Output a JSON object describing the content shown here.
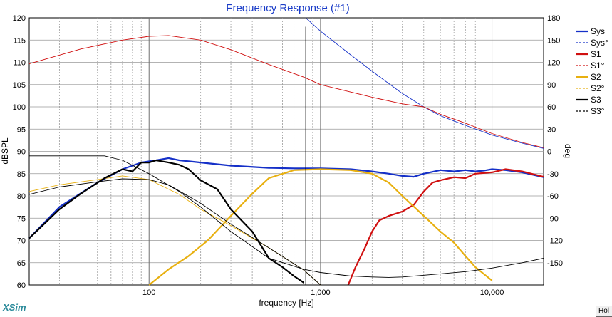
{
  "app": {
    "brand": "XSim",
    "hold_label": "Hol"
  },
  "chart_data": {
    "type": "line",
    "title": "Frequency Response (#1)",
    "xlabel": "frequency [Hz]",
    "ylabel_left": "dBSPL",
    "ylabel_right": "deg",
    "xscale": "log",
    "xlim": [
      20,
      20000
    ],
    "ylim_left": [
      60,
      120
    ],
    "ylim_right": [
      -180,
      180
    ],
    "x_tick_labels": [
      {
        "value": 100,
        "label": "100"
      },
      {
        "value": 1000,
        "label": "1,000"
      },
      {
        "value": 10000,
        "label": "10,000"
      }
    ],
    "y_left_ticks": [
      120,
      115,
      110,
      105,
      100,
      95,
      90,
      85,
      80,
      75,
      70,
      65,
      60
    ],
    "y_right_ticks": [
      180,
      150,
      120,
      90,
      60,
      30,
      0,
      -30,
      -60,
      -90,
      -120,
      -150
    ],
    "grid": true,
    "legend_position": "right",
    "colors": {
      "Sys": "#1530c8",
      "S1": "#d01010",
      "S2": "#e8b010",
      "S3": "#000000",
      "title": "#1a3cc8"
    },
    "series": [
      {
        "name": "Sys",
        "axis": "left",
        "style": "solid",
        "x": [
          20,
          30,
          50,
          70,
          90,
          110,
          130,
          150,
          200,
          300,
          500,
          700,
          1000,
          1500,
          2000,
          2500,
          3000,
          3500,
          4000,
          5000,
          6000,
          7000,
          8000,
          9000,
          10000,
          12000,
          15000,
          20000
        ],
        "y": [
          70.5,
          77.5,
          83,
          86,
          87.5,
          88,
          88.5,
          88,
          87.5,
          86.8,
          86.3,
          86.2,
          86.2,
          86,
          85.5,
          85,
          84.5,
          84.3,
          85,
          85.8,
          85.5,
          85.8,
          85.5,
          85.7,
          86,
          85.8,
          85.3,
          84.2
        ]
      },
      {
        "name": "Sys°",
        "axis": "right",
        "style": "dashed",
        "x": [
          820,
          1000,
          1500,
          2000,
          3000,
          4000,
          5000,
          7000,
          10000,
          15000,
          20000
        ],
        "y": [
          180,
          162,
          130,
          108,
          78,
          60,
          48,
          35,
          22,
          11,
          4
        ]
      },
      {
        "name": "S1",
        "axis": "left",
        "style": "solid",
        "x": [
          1450,
          1600,
          1800,
          2000,
          2200,
          2500,
          3000,
          3500,
          4000,
          4500,
          5000,
          6000,
          7000,
          8000,
          10000,
          12000,
          15000,
          20000
        ],
        "y": [
          60,
          64,
          68,
          72,
          74.5,
          75.5,
          76.5,
          78,
          81,
          83,
          83.5,
          84.2,
          84,
          85,
          85.3,
          86,
          85.5,
          84.3
        ]
      },
      {
        "name": "S1°",
        "axis": "right",
        "style": "dashed",
        "x": [
          20,
          40,
          70,
          100,
          130,
          200,
          300,
          500,
          800,
          1000,
          1500,
          2000,
          3000,
          4000,
          5000,
          7000,
          10000,
          15000,
          20000
        ],
        "y": [
          118,
          138,
          150,
          155,
          156,
          150,
          137,
          117,
          100,
          90,
          80,
          73,
          64,
          60,
          50,
          38,
          24,
          12,
          5
        ]
      },
      {
        "name": "S2",
        "axis": "left",
        "style": "solid",
        "x": [
          100,
          130,
          170,
          220,
          300,
          400,
          500,
          700,
          1000,
          1500,
          2000,
          2500,
          3000,
          4000,
          5000,
          6000,
          7000,
          8000,
          10000
        ],
        "y": [
          60,
          63.5,
          66.5,
          70,
          75.5,
          80.5,
          84,
          85.8,
          86,
          85.8,
          85,
          83,
          80,
          75.5,
          72,
          69.5,
          66.5,
          64,
          61
        ]
      },
      {
        "name": "S2°",
        "axis": "right",
        "style": "dashed",
        "x": [
          20,
          30,
          50,
          70,
          100,
          150,
          200,
          300,
          500,
          800,
          1000,
          1500,
          2000,
          3000,
          4000,
          5000,
          7000,
          10000,
          15000,
          20000
        ],
        "y": [
          -54,
          -45,
          -38,
          -33,
          -38,
          -58,
          -78,
          -100,
          -130,
          -160,
          -180,
          -180,
          -180,
          -180,
          -180,
          -180,
          -180,
          -180,
          -180,
          -180
        ]
      },
      {
        "name": "S3",
        "axis": "left",
        "style": "solid",
        "x": [
          20,
          30,
          40,
          55,
          70,
          80,
          90,
          100,
          110,
          130,
          150,
          170,
          200,
          250,
          300,
          400,
          500,
          600,
          700,
          800
        ],
        "y": [
          70.5,
          77,
          80.5,
          84,
          86,
          85.5,
          87.5,
          87.5,
          88,
          87.5,
          87,
          86,
          83.5,
          81.5,
          77,
          72,
          66,
          64,
          62,
          60.5
        ]
      },
      {
        "name": "S3°",
        "axis": "right",
        "style": "dashed",
        "x": [
          20,
          30,
          50,
          70,
          100,
          130,
          200,
          300,
          500,
          800,
          1000,
          1500,
          2000,
          3000,
          4000,
          5000,
          7000,
          10000,
          15000,
          20000
        ],
        "y": [
          -58,
          -48,
          -41,
          -37,
          -38,
          -45,
          -70,
          -98,
          -130,
          -160,
          -180,
          -180,
          -180,
          -180,
          -180,
          -180,
          -180,
          -180,
          -180,
          -180
        ]
      },
      {
        "name": "",
        "axis": "left",
        "style": "solid",
        "color": "#000000",
        "x": [
          20,
          40,
          55,
          70,
          100,
          150,
          200,
          300,
          500,
          800,
          1000,
          1500,
          2000,
          2500,
          3000,
          5000,
          7000,
          10000,
          15000,
          20000
        ],
        "y": [
          89,
          89,
          89,
          88,
          85,
          81,
          77.5,
          72,
          66,
          63.5,
          62.8,
          62,
          61.8,
          61.7,
          61.8,
          62.5,
          63,
          63.8,
          65,
          66
        ]
      },
      {
        "name": "",
        "axis": "left",
        "style": "solid",
        "color": "#000000",
        "x": [
          820,
          820
        ],
        "y": [
          60,
          118
        ]
      }
    ]
  }
}
